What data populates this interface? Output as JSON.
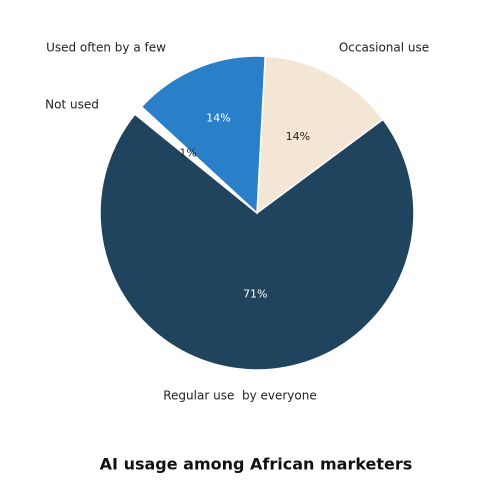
{
  "chart_data": {
    "type": "pie",
    "title": "AI usage among African marketers",
    "categories": [
      "Occasional use",
      "Regular use  by everyone",
      "Not used",
      "Used often by a few"
    ],
    "values": [
      14,
      71,
      1,
      14
    ],
    "value_labels": [
      "14%",
      "71%",
      "1%",
      "14%"
    ],
    "colors": [
      "#f4e6d5",
      "#21445e",
      "#ffffff",
      "#2a7fc9"
    ]
  }
}
